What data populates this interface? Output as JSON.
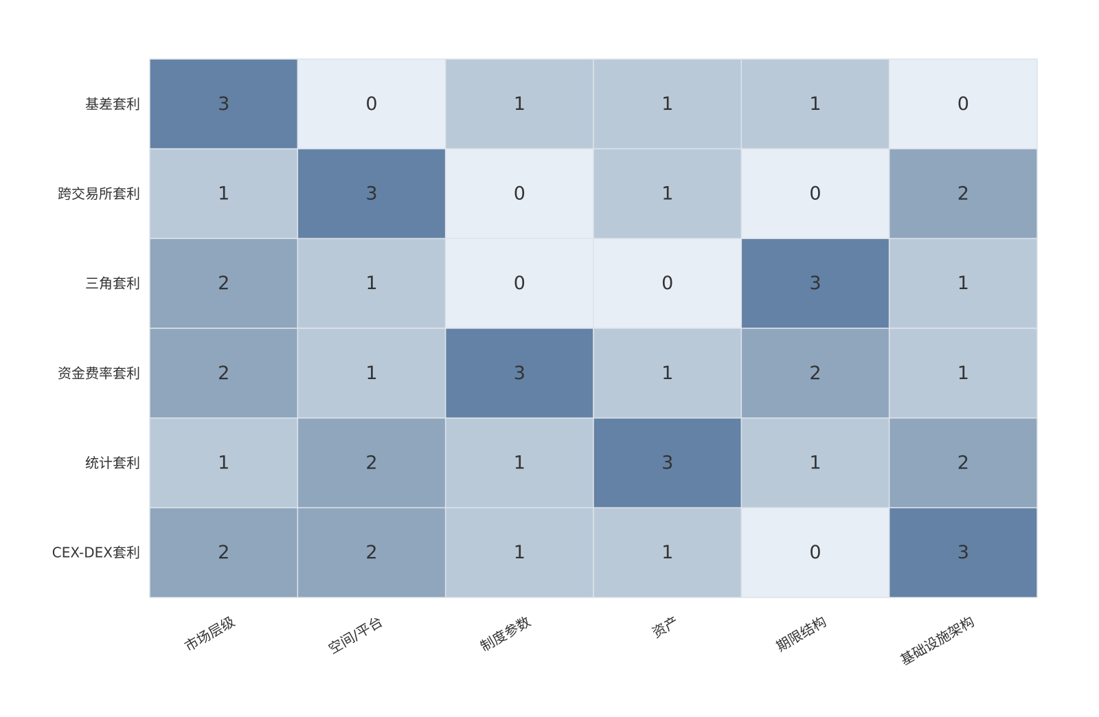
{
  "chart_data": {
    "type": "heatmap",
    "title": "",
    "xlabel": "",
    "ylabel": "",
    "rows": [
      "基差套利",
      "跨交易所套利",
      "三角套利",
      "资金费率套利",
      "统计套利",
      "CEX-DEX套利"
    ],
    "columns": [
      "市场层级",
      "空间/平台",
      "制度参数",
      "资产",
      "期限结构",
      "基础设施架构"
    ],
    "values": [
      [
        3,
        0,
        1,
        1,
        1,
        0
      ],
      [
        1,
        3,
        0,
        1,
        0,
        2
      ],
      [
        2,
        1,
        0,
        0,
        3,
        1
      ],
      [
        2,
        1,
        3,
        1,
        2,
        1
      ],
      [
        1,
        2,
        1,
        3,
        1,
        2
      ],
      [
        2,
        2,
        1,
        1,
        0,
        3
      ]
    ],
    "value_range": [
      0,
      3
    ],
    "colors": {
      "0": "#e8eef6",
      "1": "#bac9d8",
      "2": "#8fa6bd",
      "3": "#6382a5"
    },
    "grid_line_color": "#dde3ea",
    "text_color": "#333333",
    "legend": "none"
  }
}
